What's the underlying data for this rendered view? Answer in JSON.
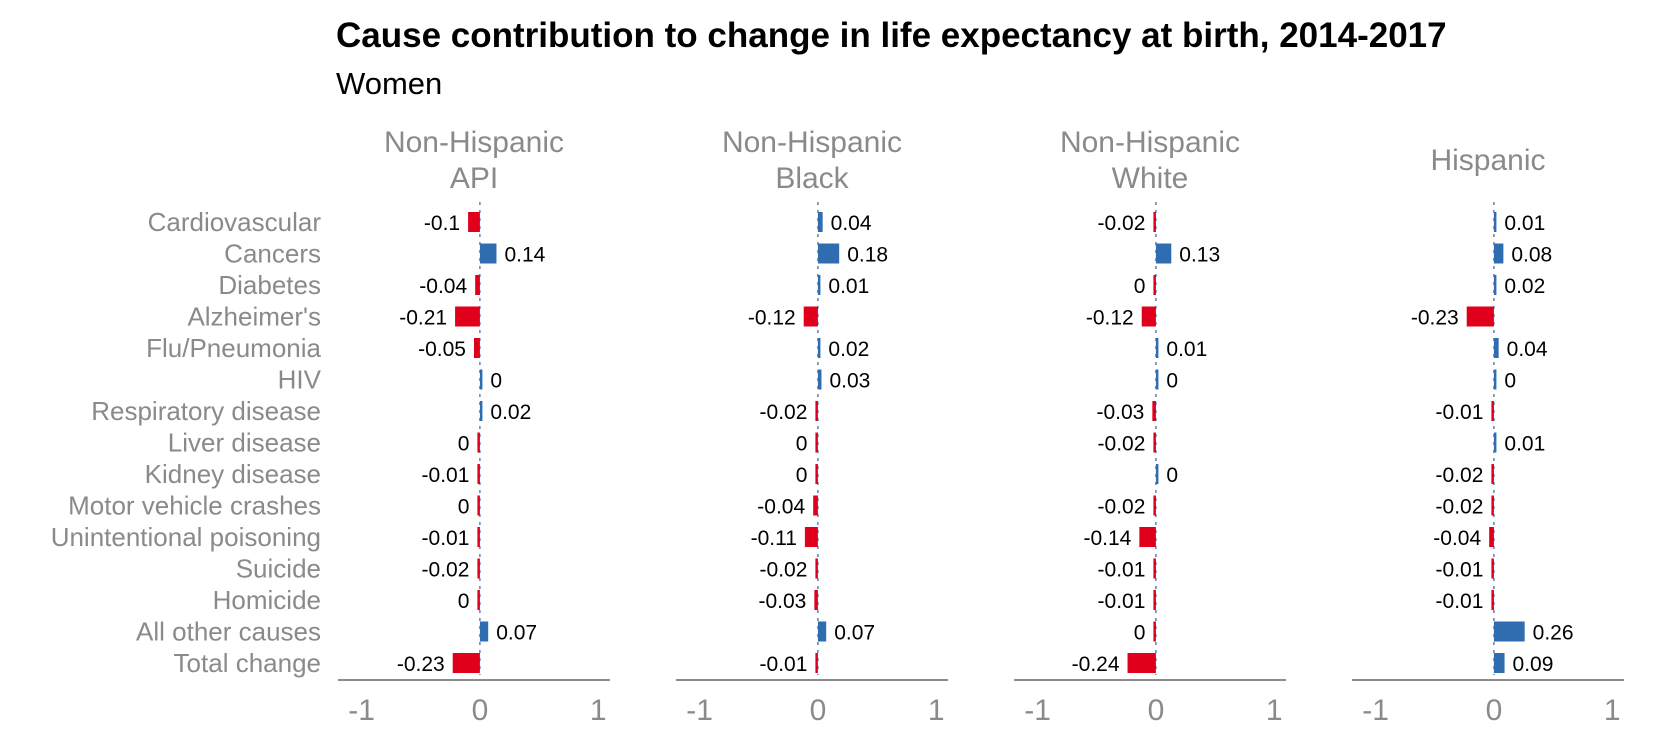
{
  "chart_data": {
    "type": "bar",
    "orientation": "horizontal",
    "title": "Cause contribution to change in life expectancy at birth, 2014-2017",
    "subtitle": "Women",
    "categories": [
      "Cardiovascular",
      "Cancers",
      "Diabetes",
      "Alzheimer's",
      "Flu/Pneumonia",
      "HIV",
      "Respiratory disease",
      "Liver disease",
      "Kidney disease",
      "Motor vehicle crashes",
      "Unintentional poisoning",
      "Suicide",
      "Homicide",
      "All other causes",
      "Total change"
    ],
    "xlim": [
      -1.2,
      1.1
    ],
    "xticks": [
      -1,
      0,
      1
    ],
    "xtick_labels": [
      "-1",
      "0",
      "1"
    ],
    "grid": false,
    "colors": {
      "positive": "#2f6db0",
      "negative": "#e0001b"
    },
    "series": [
      {
        "name": "Non-Hispanic API",
        "name_lines": [
          "Non-Hispanic",
          "API"
        ],
        "values": [
          -0.1,
          0.14,
          -0.04,
          -0.21,
          -0.05,
          0,
          0.02,
          0,
          -0.01,
          0,
          -0.01,
          -0.02,
          0,
          0.07,
          -0.23
        ],
        "signs": [
          -1,
          1,
          -1,
          -1,
          -1,
          1,
          1,
          -1,
          -1,
          -1,
          -1,
          -1,
          -1,
          1,
          -1
        ]
      },
      {
        "name": "Non-Hispanic Black",
        "name_lines": [
          "Non-Hispanic",
          "Black"
        ],
        "values": [
          0.04,
          0.18,
          0.01,
          -0.12,
          0.02,
          0.03,
          -0.02,
          0,
          0,
          -0.04,
          -0.11,
          -0.02,
          -0.03,
          0.07,
          -0.01
        ],
        "signs": [
          1,
          1,
          1,
          -1,
          1,
          1,
          -1,
          -1,
          -1,
          -1,
          -1,
          -1,
          -1,
          1,
          -1
        ]
      },
      {
        "name": "Non-Hispanic White",
        "name_lines": [
          "Non-Hispanic",
          "White"
        ],
        "values": [
          -0.02,
          0.13,
          0,
          -0.12,
          0.01,
          0,
          -0.03,
          -0.02,
          0,
          -0.02,
          -0.14,
          -0.01,
          -0.01,
          0,
          -0.24
        ],
        "signs": [
          -1,
          1,
          -1,
          -1,
          1,
          1,
          -1,
          -1,
          1,
          -1,
          -1,
          -1,
          -1,
          -1,
          -1
        ]
      },
      {
        "name": "Hispanic",
        "name_lines": [
          "Hispanic"
        ],
        "values": [
          0.01,
          0.08,
          0.02,
          -0.23,
          0.04,
          0,
          -0.01,
          0.01,
          -0.02,
          -0.02,
          -0.04,
          -0.01,
          -0.01,
          0.26,
          0.09
        ],
        "signs": [
          1,
          1,
          1,
          -1,
          1,
          1,
          -1,
          1,
          -1,
          -1,
          -1,
          -1,
          -1,
          1,
          1
        ]
      }
    ]
  }
}
